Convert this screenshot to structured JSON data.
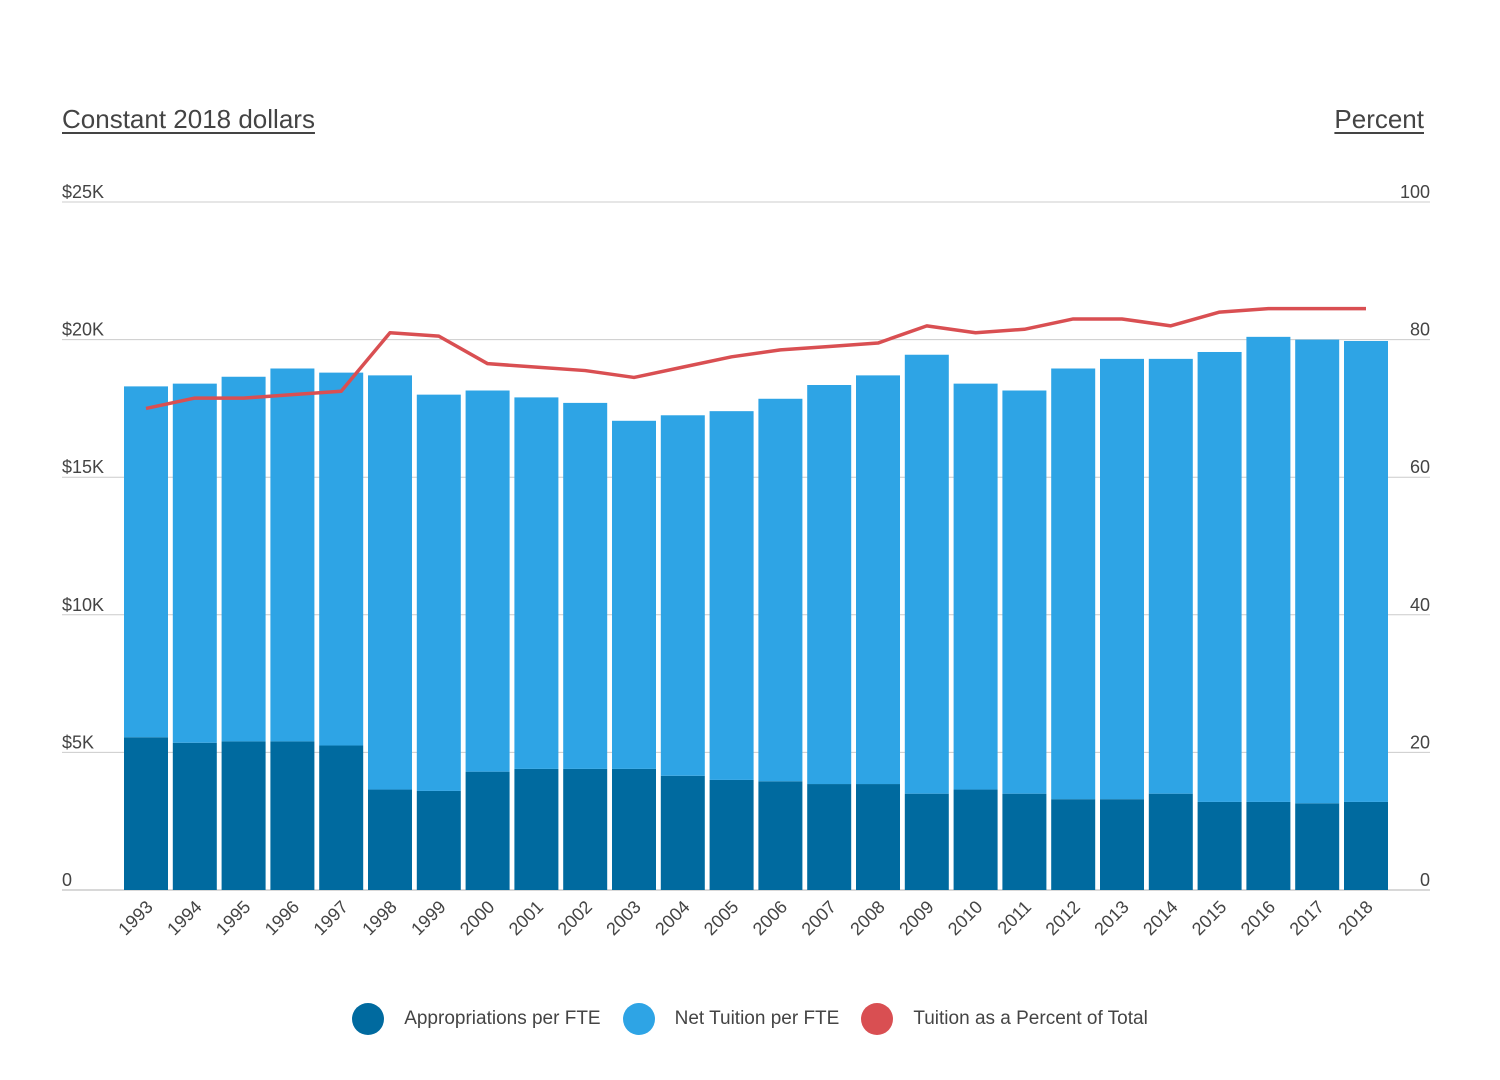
{
  "chart_data": {
    "type": "bar",
    "stacked": true,
    "left_axis_title": "Constant 2018 dollars",
    "right_axis_title": "Percent",
    "categories": [
      "1993",
      "1994",
      "1995",
      "1996",
      "1997",
      "1998",
      "1999",
      "2000",
      "2001",
      "2002",
      "2003",
      "2004",
      "2005",
      "2006",
      "2007",
      "2008",
      "2009",
      "2010",
      "2011",
      "2012",
      "2013",
      "2014",
      "2015",
      "2016",
      "2017",
      "2018"
    ],
    "series": [
      {
        "name": "Appropriations per FTE",
        "kind": "bar",
        "axis": "left",
        "color": "#006a9f",
        "values": [
          5550,
          5350,
          5400,
          5400,
          5250,
          3650,
          3600,
          4300,
          4400,
          4400,
          4400,
          4150,
          4000,
          3950,
          3850,
          3850,
          3500,
          3650,
          3500,
          3300,
          3300,
          3500,
          3200,
          3200,
          3150,
          3200
        ]
      },
      {
        "name": "Net Tuition per FTE",
        "kind": "bar",
        "axis": "left",
        "color": "#2ea4e5",
        "values": [
          12750,
          13050,
          13250,
          13550,
          13550,
          15050,
          14400,
          13850,
          13500,
          13300,
          12650,
          13100,
          13400,
          13900,
          14500,
          14850,
          15950,
          14750,
          14650,
          15650,
          16000,
          15800,
          16350,
          16900,
          16850,
          16750
        ]
      },
      {
        "name": "Tuition as a Percent of Total",
        "kind": "line",
        "axis": "right",
        "color": "#d94f52",
        "values": [
          70,
          71.5,
          71.5,
          72,
          72.5,
          81,
          80.5,
          76.5,
          76,
          75.5,
          74.5,
          76,
          77.5,
          78.5,
          79,
          79.5,
          82,
          81,
          81.5,
          83,
          83,
          82,
          84,
          84.5,
          84.5,
          84.5
        ]
      }
    ],
    "y_left": {
      "min": 0,
      "max": 25000,
      "ticks": [
        0,
        5000,
        10000,
        15000,
        20000,
        25000
      ],
      "tick_labels": [
        "0",
        "$5K",
        "$10K",
        "$15K",
        "$20K",
        "$25K"
      ]
    },
    "y_right": {
      "min": 0,
      "max": 100,
      "ticks": [
        0,
        20,
        40,
        60,
        80,
        100
      ],
      "tick_labels": [
        "0",
        "20",
        "40",
        "60",
        "80",
        "100"
      ]
    },
    "grid": true,
    "gridline_color": "#cccccc",
    "legend_position": "bottom"
  }
}
